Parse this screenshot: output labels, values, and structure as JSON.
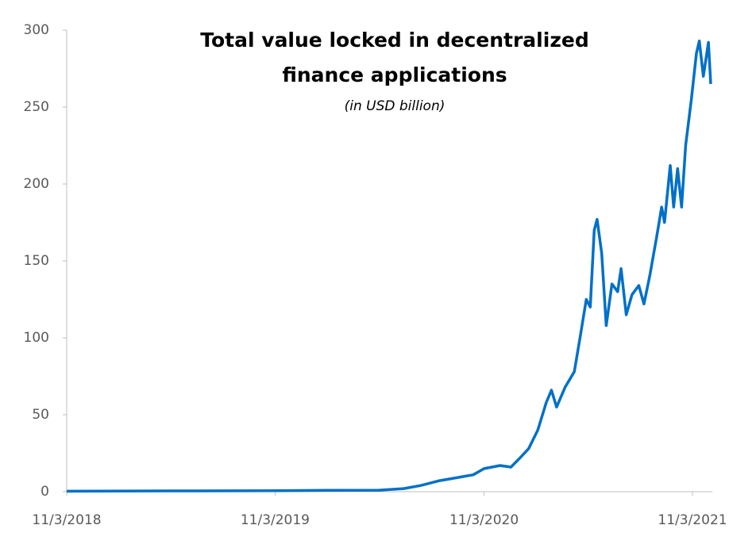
{
  "chart_data": {
    "type": "line",
    "title": "Total value locked in decentralized finance applications",
    "subtitle": "(in USD billion)",
    "x": [
      "11/3/2018",
      "5/3/2019",
      "11/3/2019",
      "2/3/2020",
      "5/3/2020",
      "6/15/2020",
      "7/15/2020",
      "8/15/2020",
      "9/15/2020",
      "10/15/2020",
      "11/3/2020",
      "12/1/2020",
      "12/20/2020",
      "1/5/2021",
      "1/20/2021",
      "2/5/2021",
      "2/20/2021",
      "3/1/2021",
      "3/10/2021",
      "3/25/2021",
      "4/10/2021",
      "4/20/2021",
      "5/1/2021",
      "5/8/2021",
      "5/15/2021",
      "5/20/2021",
      "5/28/2021",
      "6/5/2021",
      "6/15/2021",
      "6/25/2021",
      "7/1/2021",
      "7/10/2021",
      "7/20/2021",
      "8/1/2021",
      "8/10/2021",
      "8/20/2021",
      "9/1/2021",
      "9/10/2021",
      "9/15/2021",
      "9/25/2021",
      "10/1/2021",
      "10/8/2021",
      "10/15/2021",
      "10/22/2021",
      "11/1/2021",
      "11/10/2021",
      "11/15/2021",
      "11/22/2021",
      "12/1/2021",
      "12/5/2021"
    ],
    "series": [
      {
        "name": "Total value locked",
        "color": "#0070c8",
        "values": [
          0.3,
          0.5,
          0.6,
          0.9,
          1,
          2,
          4,
          7,
          9,
          11,
          15,
          17,
          16,
          22,
          28,
          40,
          58,
          66,
          55,
          68,
          78,
          100,
          125,
          120,
          170,
          177,
          155,
          108,
          135,
          130,
          145,
          115,
          128,
          134,
          122,
          140,
          165,
          185,
          175,
          212,
          185,
          210,
          185,
          225,
          255,
          285,
          293,
          270,
          292,
          265
        ]
      }
    ],
    "xlim": [
      "11/3/2018",
      "12/8/2021"
    ],
    "xticks": [
      "11/3/2018",
      "11/3/2019",
      "11/3/2020",
      "11/3/2021"
    ],
    "ylim": [
      0,
      300
    ],
    "yticks": [
      0,
      50,
      100,
      150,
      200,
      250,
      300
    ]
  }
}
